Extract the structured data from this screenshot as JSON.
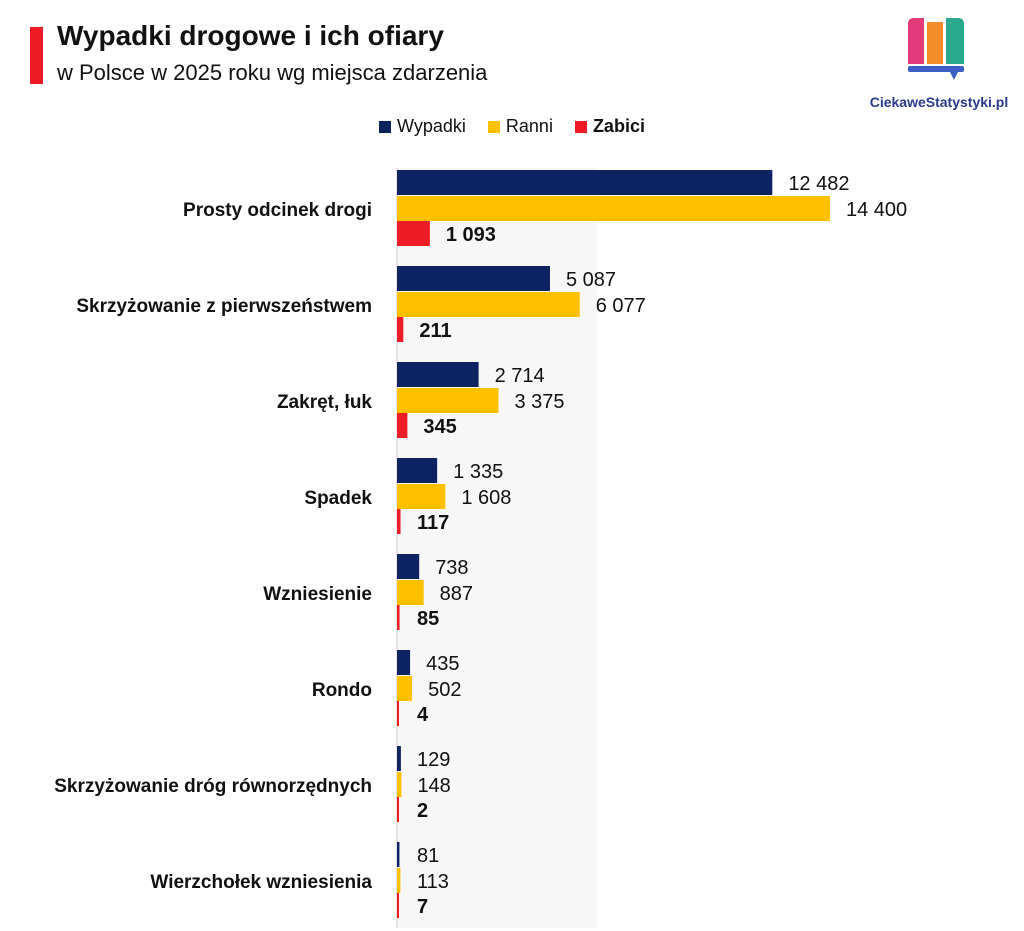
{
  "header": {
    "title": "Wypadki drogowe i ich ofiary",
    "subtitle": "w Polsce w 2025 roku wg miejsca zdarzenia",
    "accent_color": "#ee1c25"
  },
  "logo": {
    "text": "CiekaweStatystyki.pl",
    "colors": [
      "#e23b7a",
      "#f28c28",
      "#2aa98f",
      "#3b5fc4"
    ]
  },
  "legend": [
    {
      "label": "Wypadki",
      "color": "#0d2260",
      "bold": false
    },
    {
      "label": "Ranni",
      "color": "#ffc000",
      "bold": false
    },
    {
      "label": "Zabici",
      "color": "#ee1c25",
      "bold": true
    }
  ],
  "chart_data": {
    "type": "bar",
    "orientation": "horizontal",
    "categories": [
      "Prosty odcinek drogi",
      "Skrzyżowanie z pierwszeństwem",
      "Zakręt, łuk",
      "Spadek",
      "Wzniesienie",
      "Rondo",
      "Skrzyżowanie dróg równorzędnych",
      "Wierzchołek wzniesienia"
    ],
    "series": [
      {
        "name": "Wypadki",
        "color": "#0d2260",
        "values": [
          12482,
          5087,
          2714,
          1335,
          738,
          435,
          129,
          81
        ],
        "labels": [
          "12 482",
          "5 087",
          "2 714",
          "1 335",
          "738",
          "435",
          "129",
          "81"
        ],
        "label_bold": false
      },
      {
        "name": "Ranni",
        "color": "#ffc000",
        "values": [
          14400,
          6077,
          3375,
          1608,
          887,
          502,
          148,
          113
        ],
        "labels": [
          "14 400",
          "6 077",
          "3 375",
          "1 608",
          "887",
          "502",
          "148",
          "113"
        ],
        "label_bold": false
      },
      {
        "name": "Zabici",
        "color": "#ee1c25",
        "values": [
          1093,
          211,
          345,
          117,
          85,
          4,
          2,
          7
        ],
        "labels": [
          "1 093",
          "211",
          "345",
          "117",
          "85",
          "4",
          "2",
          "7"
        ],
        "label_bold": true
      }
    ],
    "xlim": [
      0,
      14400
    ],
    "grid": false,
    "legend_position": "top"
  }
}
